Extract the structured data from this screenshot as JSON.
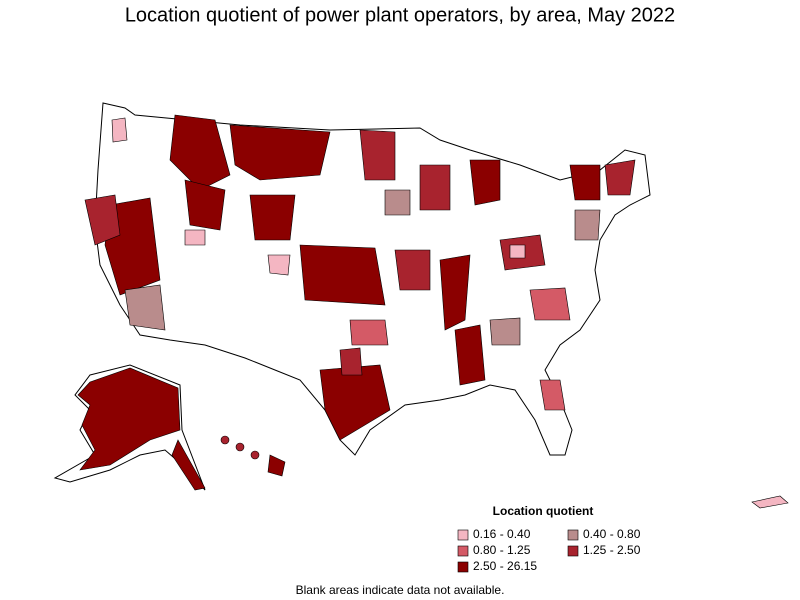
{
  "title": "Location quotient of power plant operators, by area, May 2022",
  "legend": {
    "title": "Location quotient",
    "items": [
      {
        "label": "0.16 - 0.40",
        "color": "#f4b6c2"
      },
      {
        "label": "0.40 - 0.80",
        "color": "#b98c8c"
      },
      {
        "label": "0.80 - 1.25",
        "color": "#d45a66"
      },
      {
        "label": "1.25 - 2.50",
        "color": "#a8232e"
      },
      {
        "label": "2.50 - 26.15",
        "color": "#8b0000"
      }
    ]
  },
  "footnote": "Blank areas indicate data not available."
}
